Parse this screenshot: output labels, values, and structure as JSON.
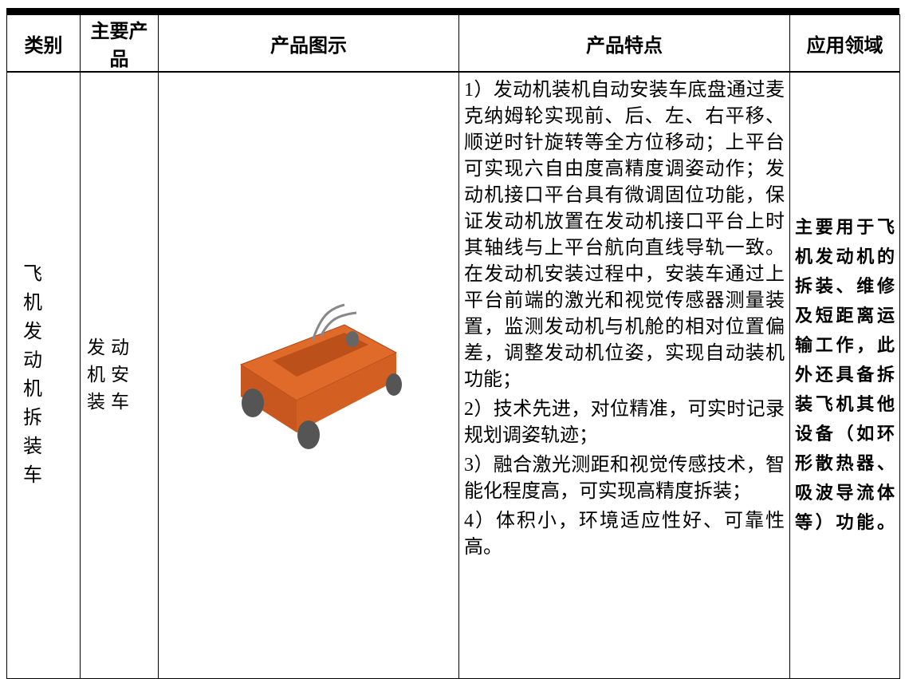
{
  "table": {
    "headers": [
      "类别",
      "主要产品",
      "产品图示",
      "产品特点",
      "应用领域"
    ],
    "rows": [
      {
        "category": "飞机发动机拆装车",
        "product": "发动机安装车",
        "features": [
          "1）发动机装机自动安装车底盘通过麦克纳姆轮实现前、后、左、右平移、顺逆时针旋转等全方位移动；上平台可实现六自由度高精度调姿动作；发动机接口平台具有微调固位功能，保证发动机放置在发动机接口平台上时其轴线与上平台航向直线导轨一致。在发动机安装过程中，安装车通过上平台前端的激光和视觉传感器测量装置，监测发动机与机舱的相对位置偏差，调整发动机位姿，实现自动装机功能；",
          "2）技术先进，对位精准，可实时记录规划调姿轨迹；",
          "3）融合激光测距和视觉传感技术，智能化程度高，可实现高精度拆装；",
          "4）体积小，环境适应性好、可靠性高。"
        ],
        "application": "主要用于飞机发动机的拆装、维修及短距离运输工作，此外还具备拆装飞机其他设备（如环形散热器、吸波导流体等）功能。"
      }
    ]
  }
}
